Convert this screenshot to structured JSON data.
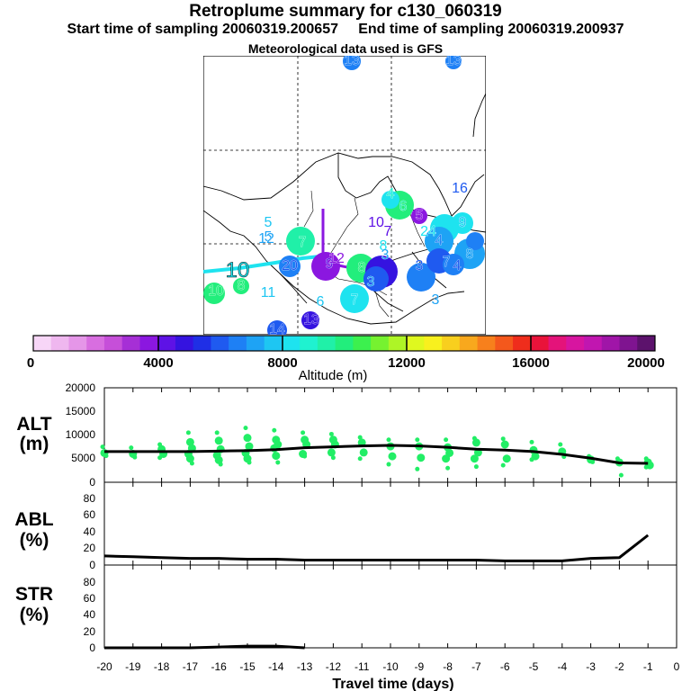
{
  "title": "Retroplume summary for c130_060319",
  "start_label": "Start time of sampling 20060319.200657",
  "end_label": "End time of sampling 20060319.200937",
  "met_label": "Meteorological data used is GFS",
  "colorbar": {
    "label": "Altitude (m)",
    "ticks": [
      "0",
      "4000",
      "8000",
      "12000",
      "16000",
      "20000"
    ],
    "colors": [
      "#f7d6f7",
      "#efb7ef",
      "#e596e8",
      "#d86ee0",
      "#c64fd9",
      "#a62fd6",
      "#8b17e0",
      "#5e12e6",
      "#3513e0",
      "#1f2fe6",
      "#1f5af0",
      "#1e80f5",
      "#1ea3f5",
      "#1ec6f2",
      "#1ee3ef",
      "#1ff2d0",
      "#20f0a8",
      "#22ee7c",
      "#3cf04e",
      "#76f230",
      "#aef526",
      "#dff81f",
      "#f8f01e",
      "#f8cf1e",
      "#f8a81d",
      "#f7801c",
      "#f4581c",
      "#ef2d1c",
      "#e9133a",
      "#e4137a",
      "#d715a0",
      "#c116b0",
      "#a015a8",
      "#7f1490",
      "#5c126c"
    ]
  },
  "map": {
    "plume_numbers": [
      {
        "n": "13",
        "c": "#1e80f5"
      },
      {
        "n": "13",
        "c": "#1e80f5"
      },
      {
        "n": "4",
        "c": "#1ff2d0"
      },
      {
        "n": "6",
        "c": "#20f0a8"
      },
      {
        "n": "16",
        "c": "#1f5af0"
      },
      {
        "n": "5",
        "c": "#8b17e0"
      },
      {
        "n": "10",
        "c": "#5e12e6"
      },
      {
        "n": "5",
        "c": "#1ec6f2"
      },
      {
        "n": "7",
        "c": "#5e12e6"
      },
      {
        "n": "5",
        "c": "#1ea3f5"
      },
      {
        "n": "12",
        "c": "#1ea3f5"
      },
      {
        "n": "9",
        "c": "#1ec6f2"
      },
      {
        "n": "7",
        "c": "#20f0a8"
      },
      {
        "n": "4",
        "c": "#1e80f5"
      },
      {
        "n": "8",
        "c": "#1ee3ef"
      },
      {
        "n": "24",
        "c": "#1ee3ef"
      },
      {
        "n": "3",
        "c": "#1ea3f5"
      },
      {
        "n": "20",
        "c": "#1f5af0"
      },
      {
        "n": "9",
        "c": "#5e12e6"
      },
      {
        "n": "12",
        "c": "#8b17e0"
      },
      {
        "n": "8",
        "c": "#22ee7c"
      },
      {
        "n": "3",
        "c": "#1f5af0"
      },
      {
        "n": "7",
        "c": "#1e80f5"
      },
      {
        "n": "4",
        "c": "#1f5af0"
      },
      {
        "n": "8",
        "c": "#1ea3f5"
      },
      {
        "n": "10",
        "c": "#22ee7c"
      },
      {
        "n": "8",
        "c": "#22ee7c"
      },
      {
        "n": "11",
        "c": "#1ec6f2"
      },
      {
        "n": "6",
        "c": "#1ec6f2"
      },
      {
        "n": "7",
        "c": "#1ee3ef"
      },
      {
        "n": "3",
        "c": "#1ea3f5"
      },
      {
        "n": "13",
        "c": "#3513e0"
      },
      {
        "n": "14",
        "c": "#1f5af0"
      },
      {
        "n": "3",
        "c": "#1ea3f5"
      },
      {
        "n": "10",
        "c": "#1ee3ef"
      }
    ]
  },
  "chart_data": [
    {
      "type": "scatter",
      "panel": "ALT",
      "ylabel_line1": "ALT",
      "ylabel_line2": "(m)",
      "ylim": [
        0,
        20000
      ],
      "yticks": [
        "20000",
        "15000",
        "10000",
        "5000",
        "0"
      ],
      "xlim": [
        -20,
        0
      ],
      "median_line": {
        "x": [
          -20,
          -19,
          -18,
          -17,
          -16,
          -15,
          -14,
          -13,
          -12,
          -11,
          -10,
          -9,
          -8,
          -7,
          -6,
          -5,
          -4,
          -3,
          -2,
          -1
        ],
        "y": [
          6500,
          6500,
          6500,
          6500,
          6600,
          6700,
          6900,
          7300,
          7500,
          7700,
          7800,
          7700,
          7400,
          7000,
          6800,
          6500,
          5900,
          5100,
          4100,
          4000
        ]
      },
      "points_color": "#22ee66",
      "points": [
        {
          "x": -20,
          "ys": [
            7500,
            6200,
            5600
          ]
        },
        {
          "x": -19,
          "ys": [
            7300,
            6000,
            5300
          ]
        },
        {
          "x": -18,
          "ys": [
            8000,
            7000,
            6000,
            5200
          ]
        },
        {
          "x": -17,
          "ys": [
            10500,
            8500,
            7200,
            6000,
            5000,
            4000
          ]
        },
        {
          "x": -16,
          "ys": [
            10500,
            8800,
            7000,
            5700,
            4700,
            3800
          ]
        },
        {
          "x": -15,
          "ys": [
            11500,
            9400,
            7600,
            6200,
            5000,
            4200
          ]
        },
        {
          "x": -14,
          "ys": [
            11000,
            9000,
            8000,
            7200,
            5600,
            4200
          ]
        },
        {
          "x": -13,
          "ys": [
            10500,
            9000,
            8000,
            6000,
            5500
          ]
        },
        {
          "x": -12,
          "ys": [
            10200,
            9000,
            8000,
            6300,
            5200
          ]
        },
        {
          "x": -11,
          "ys": [
            9500,
            8400,
            6300,
            5000
          ]
        },
        {
          "x": -10,
          "ys": [
            9000,
            7600,
            5500,
            3800
          ]
        },
        {
          "x": -9,
          "ys": [
            9000,
            7600,
            5200,
            2800
          ]
        },
        {
          "x": -8,
          "ys": [
            9000,
            7400,
            6200,
            5000,
            3000
          ]
        },
        {
          "x": -7,
          "ys": [
            9300,
            8400,
            6300,
            5000,
            3300
          ]
        },
        {
          "x": -6,
          "ys": [
            9200,
            8000,
            5000,
            3600
          ]
        },
        {
          "x": -5,
          "ys": [
            8500,
            6800,
            5500,
            4800
          ]
        },
        {
          "x": -4,
          "ys": [
            8000,
            6500,
            5400
          ]
        },
        {
          "x": -3,
          "ys": [
            5500,
            4800,
            4300
          ]
        },
        {
          "x": -2,
          "ys": [
            5000,
            4200,
            1500
          ]
        },
        {
          "x": -1,
          "ys": [
            5000,
            4200,
            3600,
            3200
          ]
        }
      ]
    },
    {
      "type": "line",
      "panel": "ABL",
      "ylabel_line1": "ABL",
      "ylabel_line2": "(%)",
      "ylim": [
        0,
        100
      ],
      "yticks": [
        "80",
        "60",
        "40",
        "20",
        "0"
      ],
      "x": [
        -20,
        -19,
        -18,
        -17,
        -16,
        -15,
        -14,
        -13,
        -12,
        -11,
        -10,
        -9,
        -8,
        -7,
        -6,
        -5,
        -4,
        -3,
        -2,
        -1
      ],
      "y": [
        11,
        10,
        9,
        8,
        8,
        7,
        7,
        6,
        6,
        6,
        6,
        6,
        6,
        6,
        5,
        5,
        5,
        8,
        9,
        36
      ]
    },
    {
      "type": "line",
      "panel": "STR",
      "ylabel_line1": "STR",
      "ylabel_line2": "(%)",
      "ylim": [
        0,
        100
      ],
      "yticks": [
        "80",
        "60",
        "40",
        "20",
        "0"
      ],
      "x": [
        -20,
        -19,
        -18,
        -17,
        -16,
        -15,
        -14,
        -13
      ],
      "y": [
        0,
        0,
        0,
        0,
        1,
        2,
        2,
        0
      ],
      "xlabel": "Travel time (days)",
      "xticklabels": [
        "-20",
        "-19",
        "-18",
        "-17",
        "-16",
        "-15",
        "-14",
        "-13",
        "-12",
        "-11",
        "-10",
        "-9",
        "-8",
        "-7",
        "-6",
        "-5",
        "-4",
        "-3",
        "-2",
        "-1",
        "0"
      ]
    }
  ]
}
